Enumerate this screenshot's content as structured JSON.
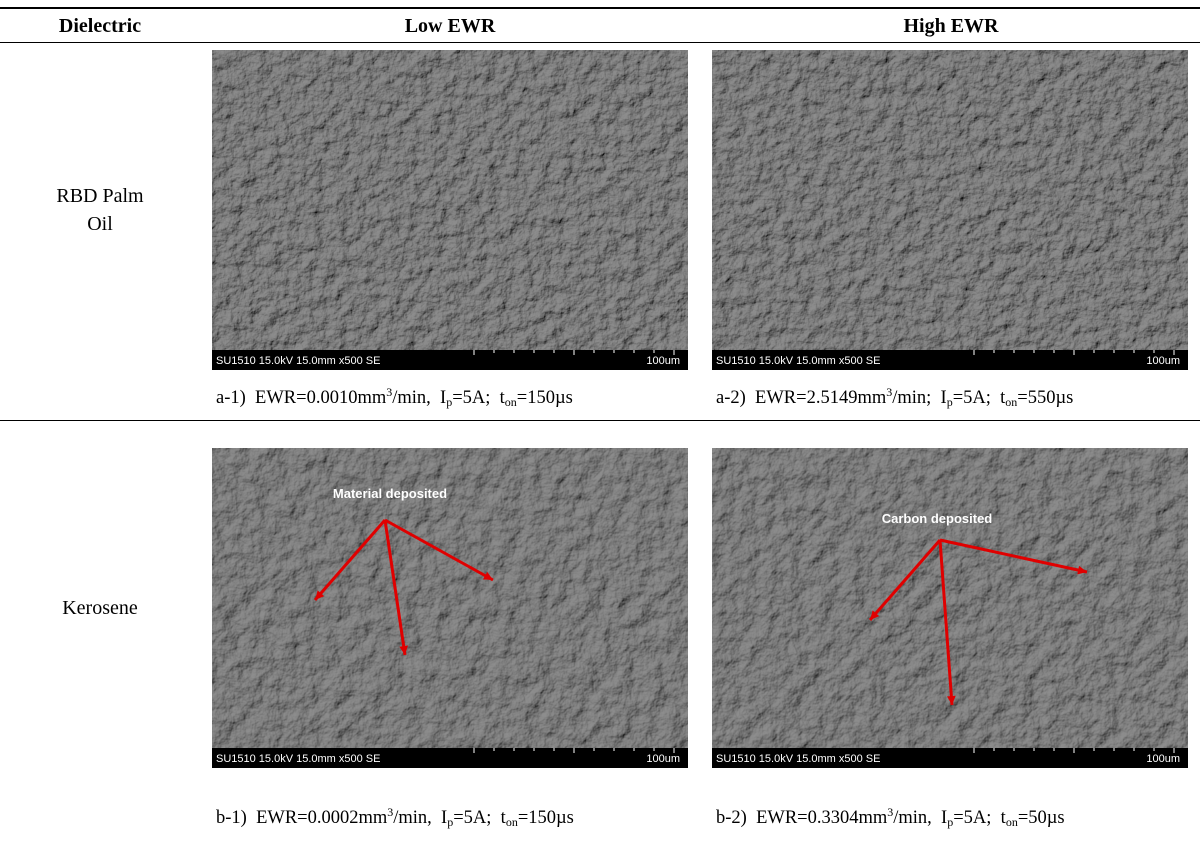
{
  "table": {
    "header": [
      "Dielectric",
      "Low EWR",
      "High EWR"
    ],
    "rows": [
      {
        "dielectric": "RBD Palm Oil",
        "cells": [
          {
            "image": {
              "info": "SU1510 15.0kV 15.0mm x500 SE",
              "scale": "100um"
            },
            "caption": [
              {
                "text": "a-1)  EWR=0.0010mm"
              },
              {
                "sup": "3"
              },
              {
                "text": "/min,  I"
              },
              {
                "sub": "p"
              },
              {
                "text": "=5A;  t"
              },
              {
                "sub": "on"
              },
              {
                "text": "=150µs"
              }
            ]
          },
          {
            "image": {
              "info": "SU1510 15.0kV 15.0mm x500 SE",
              "scale": "100um"
            },
            "caption": [
              {
                "text": "a-2)  EWR=2.5149mm"
              },
              {
                "sup": "3"
              },
              {
                "text": "/min;  I"
              },
              {
                "sub": "p"
              },
              {
                "text": "=5A;  t"
              },
              {
                "sub": "on"
              },
              {
                "text": "=550µs"
              }
            ]
          }
        ]
      },
      {
        "dielectric": "Kerosene",
        "cells": [
          {
            "image": {
              "info": "SU1510 15.0kV 15.0mm x500 SE",
              "scale": "100um",
              "annotation": "Material deposited"
            },
            "caption": [
              {
                "text": "b-1)  EWR=0.0002mm"
              },
              {
                "sup": "3"
              },
              {
                "text": "/min,  I"
              },
              {
                "sub": "p"
              },
              {
                "text": "=5A;  t"
              },
              {
                "sub": "on"
              },
              {
                "text": "=150µs"
              }
            ]
          },
          {
            "image": {
              "info": "SU1510 15.0kV 15.0mm x500 SE",
              "scale": "100um",
              "annotation": "Carbon deposited"
            },
            "caption": [
              {
                "text": "b-2)  EWR=0.3304mm"
              },
              {
                "sup": "3"
              },
              {
                "text": "/min,  I"
              },
              {
                "sub": "p"
              },
              {
                "text": "=5A;  t"
              },
              {
                "sub": "on"
              },
              {
                "text": "=50µs"
              }
            ]
          }
        ]
      }
    ]
  }
}
